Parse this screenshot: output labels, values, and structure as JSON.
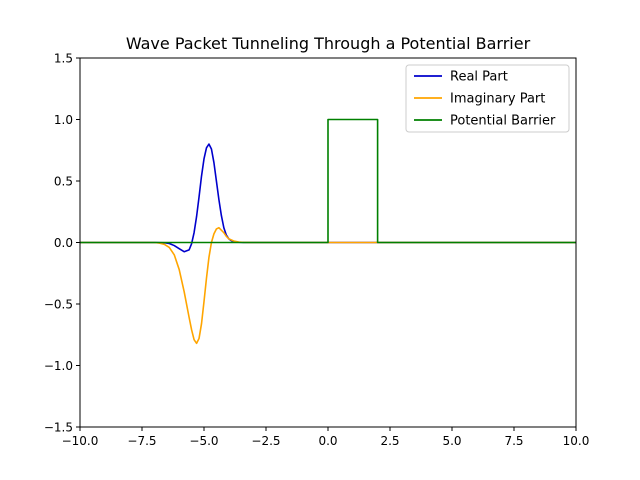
{
  "chart_data": {
    "type": "line",
    "title": "Wave Packet Tunneling Through a Potential Barrier",
    "xlabel": "",
    "ylabel": "",
    "xlim": [
      -10,
      10
    ],
    "ylim": [
      -1.5,
      1.5
    ],
    "x_ticks": [
      -10,
      -7.5,
      -5,
      -2.5,
      0,
      2.5,
      5,
      7.5,
      10
    ],
    "x_tick_labels": [
      "−10.0",
      "−7.5",
      "−5.0",
      "−2.5",
      "0.0",
      "2.5",
      "5.0",
      "7.5",
      "10.0"
    ],
    "y_ticks": [
      -1.5,
      -1,
      -0.5,
      0,
      0.5,
      1,
      1.5
    ],
    "y_tick_labels": [
      "−1.5",
      "−1.0",
      "−0.5",
      "0.0",
      "0.5",
      "1.0",
      "1.5"
    ],
    "grid": false,
    "legend_position": "top-right",
    "series": [
      {
        "name": "Real Part",
        "color": "#0000cc",
        "x": [
          -10,
          -7,
          -6.6,
          -6.4,
          -6.2,
          -6.0,
          -5.8,
          -5.6,
          -5.5,
          -5.4,
          -5.3,
          -5.2,
          -5.1,
          -5.0,
          -4.9,
          -4.8,
          -4.7,
          -4.6,
          -4.5,
          -4.4,
          -4.3,
          -4.2,
          -4.1,
          -4.0,
          -3.9,
          -3.8,
          -3.6,
          -3.4,
          -3.2,
          -3.0,
          10
        ],
        "y": [
          0,
          0,
          -0.002,
          -0.008,
          -0.025,
          -0.05,
          -0.075,
          -0.06,
          -0.01,
          0.08,
          0.21,
          0.37,
          0.54,
          0.68,
          0.77,
          0.8,
          0.76,
          0.65,
          0.5,
          0.35,
          0.22,
          0.12,
          0.06,
          0.03,
          0.015,
          0.007,
          0.002,
          0.0005,
          0.0001,
          0,
          0
        ]
      },
      {
        "name": "Imaginary Part",
        "color": "#ffa500",
        "x": [
          -10,
          -7,
          -6.8,
          -6.6,
          -6.4,
          -6.2,
          -6.0,
          -5.8,
          -5.6,
          -5.5,
          -5.4,
          -5.3,
          -5.2,
          -5.1,
          -5.0,
          -4.9,
          -4.8,
          -4.7,
          -4.6,
          -4.5,
          -4.4,
          -4.3,
          -4.2,
          -4.1,
          -4.0,
          -3.8,
          -3.6,
          -3.4,
          -3.2,
          -3.0,
          10
        ],
        "y": [
          0,
          0,
          -0.005,
          -0.015,
          -0.04,
          -0.1,
          -0.22,
          -0.4,
          -0.61,
          -0.71,
          -0.79,
          -0.82,
          -0.78,
          -0.66,
          -0.48,
          -0.29,
          -0.12,
          0.0,
          0.07,
          0.11,
          0.12,
          0.1,
          0.08,
          0.05,
          0.03,
          0.012,
          0.004,
          0.001,
          0.0002,
          0,
          0
        ]
      },
      {
        "name": "Potential Barrier",
        "color": "#008000",
        "x": [
          -10,
          0,
          0,
          2,
          2,
          10
        ],
        "y": [
          0,
          0,
          1,
          1,
          0,
          0
        ]
      }
    ]
  }
}
